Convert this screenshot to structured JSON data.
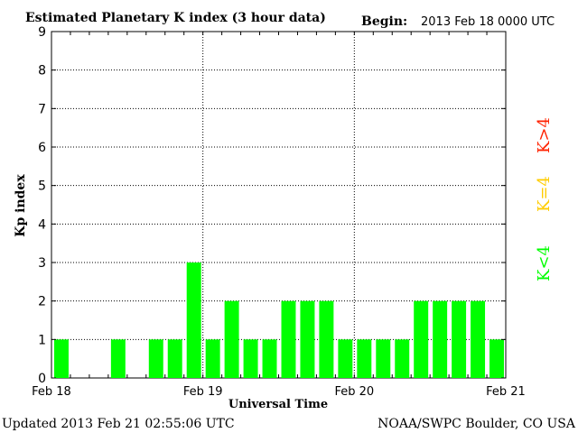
{
  "header": {
    "title": "Estimated Planetary K index (3 hour data)",
    "begin_label": "Begin:",
    "begin_value": "2013 Feb 18 0000 UTC"
  },
  "footer": {
    "updated": "Updated 2013 Feb 21 02:55:06 UTC",
    "credit": "NOAA/SWPC Boulder, CO USA"
  },
  "legend": {
    "items": [
      {
        "label": "K>4",
        "color": "#ff2200"
      },
      {
        "label": "K=4",
        "color": "#ffcc00"
      },
      {
        "label": "K<4",
        "color": "#00ff00"
      }
    ]
  },
  "chart_data": {
    "type": "bar",
    "title": "Estimated Planetary K index (3 hour data)",
    "xlabel": "Universal Time",
    "ylabel": "Kp index",
    "ylim": [
      0,
      9
    ],
    "yticks": [
      0,
      1,
      2,
      3,
      4,
      5,
      6,
      7,
      8,
      9
    ],
    "xticks": [
      "Feb 18",
      "Feb 19",
      "Feb 20",
      "Feb 21"
    ],
    "interval_hours": 3,
    "grid": true,
    "bar_color": "#00ff00",
    "values": [
      1,
      0,
      0,
      1,
      0,
      1,
      1,
      3,
      1,
      2,
      1,
      1,
      2,
      2,
      2,
      1,
      1,
      1,
      1,
      2,
      2,
      2,
      2,
      1
    ]
  }
}
